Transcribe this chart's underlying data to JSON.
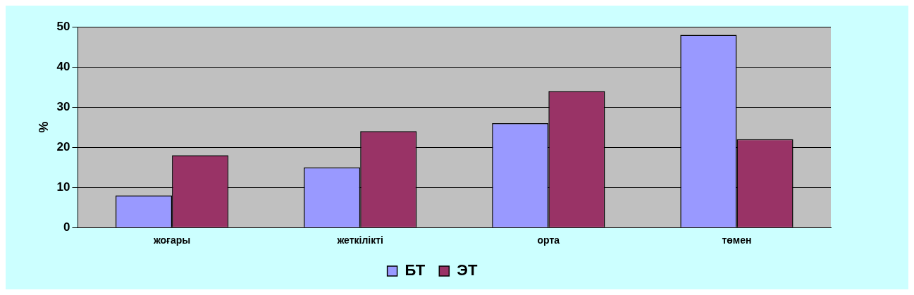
{
  "chart_data": {
    "type": "bar",
    "categories": [
      "жоғары",
      "жеткілікті",
      "орта",
      "төмен"
    ],
    "series": [
      {
        "name": "БТ",
        "color": "#9999ff",
        "values": [
          8,
          15,
          26,
          48
        ]
      },
      {
        "name": "ЭТ",
        "color": "#993366",
        "values": [
          18,
          24,
          34,
          22
        ]
      }
    ],
    "ylabel": "%",
    "ylim": [
      0,
      50
    ],
    "yticks": [
      0,
      10,
      20,
      30,
      40,
      50
    ],
    "grid": "y",
    "legend": "bottom"
  }
}
